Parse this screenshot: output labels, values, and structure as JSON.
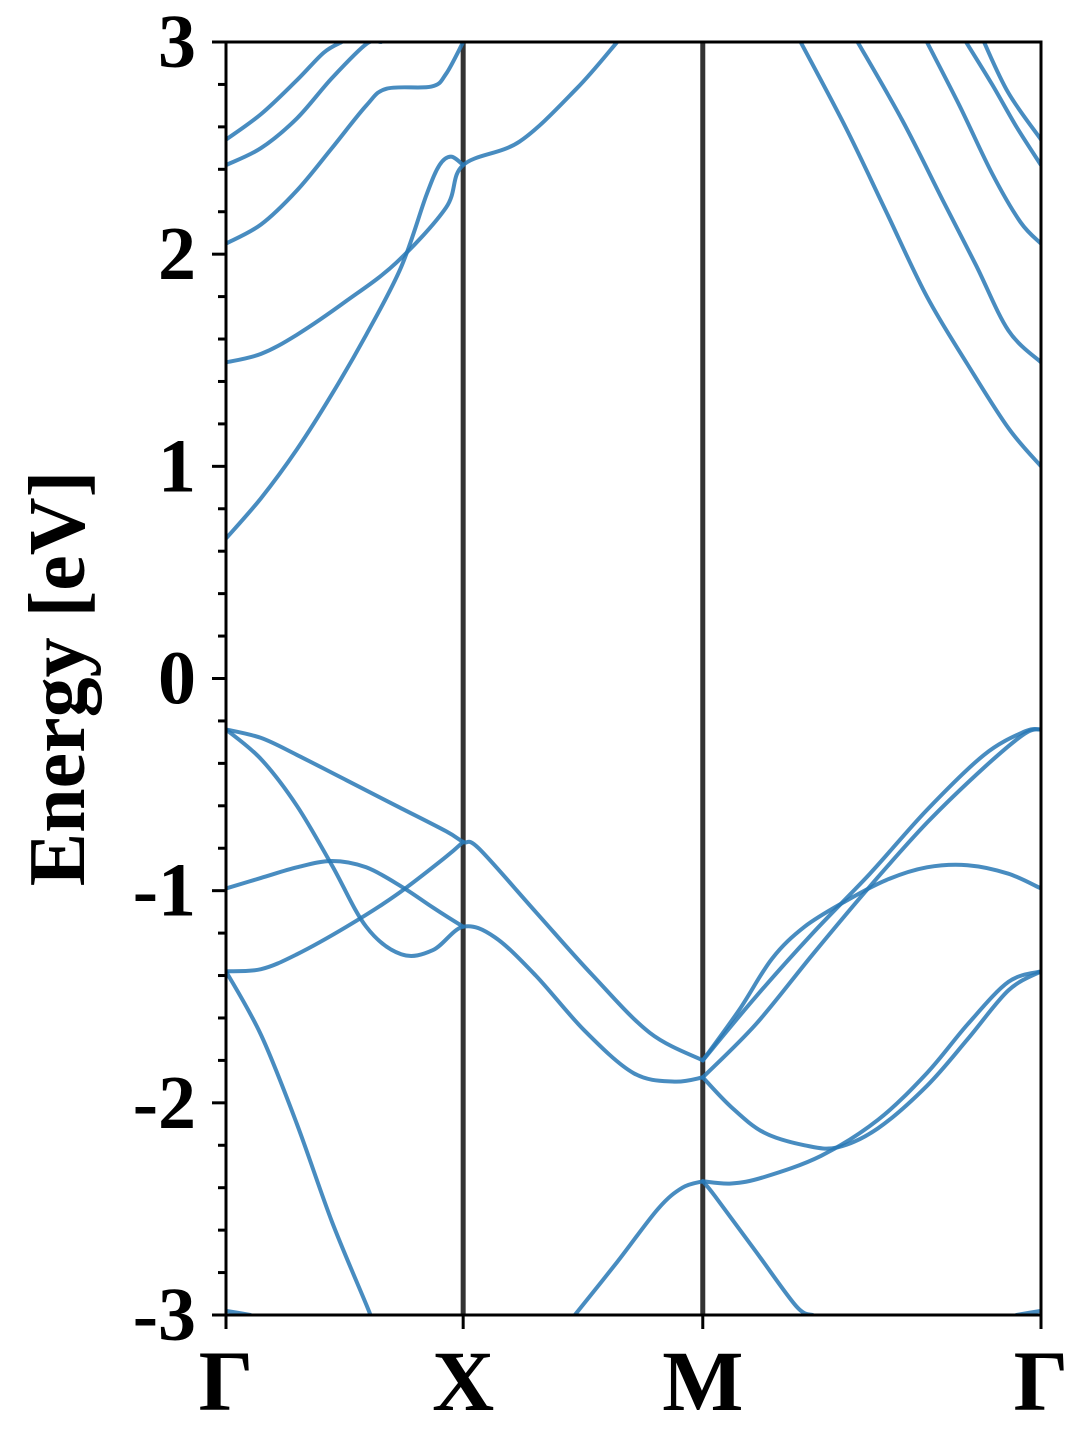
{
  "chart_data": {
    "type": "line",
    "title": "",
    "xlabel": "",
    "ylabel": "Energy [eV]",
    "ylim": [
      -3,
      3
    ],
    "xlim": [
      0,
      1
    ],
    "yticks": [
      -3,
      -2,
      -1,
      0,
      1,
      2,
      3
    ],
    "ytick_labels": [
      "-3",
      "-2",
      "-1",
      "0",
      "1",
      "2",
      "3"
    ],
    "minor_yticks_step": 0.2,
    "kpoints": [
      {
        "label": "Γ",
        "x": 0.0
      },
      {
        "label": "X",
        "x": 0.291
      },
      {
        "label": "M",
        "x": 0.585
      },
      {
        "label": "Γ",
        "x": 1.0
      }
    ],
    "grid": false,
    "colors": {
      "bands": "#2878b5",
      "kpath_lines": "#333333",
      "axes": "#000000"
    },
    "series": [
      {
        "values": [
          [
            0.0,
            2.54
          ],
          [
            0.043,
            2.66
          ],
          [
            0.087,
            2.82
          ],
          [
            0.12,
            2.95
          ],
          [
            0.142,
            3.0
          ]
        ]
      },
      {
        "values": [
          [
            0.0,
            2.42
          ],
          [
            0.043,
            2.5
          ],
          [
            0.087,
            2.64
          ],
          [
            0.13,
            2.83
          ],
          [
            0.172,
            2.99
          ],
          [
            0.19,
            3.0
          ]
        ]
      },
      {
        "values": [
          [
            0.0,
            2.05
          ],
          [
            0.043,
            2.14
          ],
          [
            0.087,
            2.3
          ],
          [
            0.13,
            2.5
          ],
          [
            0.172,
            2.7
          ],
          [
            0.197,
            2.78
          ],
          [
            0.252,
            2.79
          ],
          [
            0.27,
            2.85
          ],
          [
            0.291,
            3.0
          ]
        ]
      },
      {
        "values": [
          [
            0.0,
            1.49
          ],
          [
            0.043,
            1.53
          ],
          [
            0.087,
            1.62
          ],
          [
            0.148,
            1.78
          ],
          [
            0.209,
            1.96
          ],
          [
            0.27,
            2.22
          ],
          [
            0.291,
            2.42
          ],
          [
            0.36,
            2.53
          ],
          [
            0.43,
            2.78
          ],
          [
            0.48,
            3.0
          ]
        ]
      },
      {
        "values": [
          [
            0.0,
            0.66
          ],
          [
            0.043,
            0.85
          ],
          [
            0.087,
            1.08
          ],
          [
            0.13,
            1.34
          ],
          [
            0.172,
            1.62
          ],
          [
            0.215,
            1.94
          ],
          [
            0.246,
            2.28
          ],
          [
            0.262,
            2.42
          ],
          [
            0.276,
            2.46
          ],
          [
            0.291,
            2.42
          ]
        ]
      },
      {
        "values": [
          [
            0.705,
            3.0
          ],
          [
            0.76,
            2.6
          ],
          [
            0.81,
            2.2
          ],
          [
            0.86,
            1.8
          ],
          [
            0.91,
            1.48
          ],
          [
            0.96,
            1.18
          ],
          [
            1.0,
            1.0
          ]
        ]
      },
      {
        "values": [
          [
            0.775,
            3.0
          ],
          [
            0.83,
            2.63
          ],
          [
            0.88,
            2.25
          ],
          [
            0.92,
            1.95
          ],
          [
            0.96,
            1.64
          ],
          [
            1.0,
            1.49
          ]
        ]
      },
      {
        "values": [
          [
            0.86,
            3.0
          ],
          [
            0.9,
            2.7
          ],
          [
            0.94,
            2.38
          ],
          [
            0.975,
            2.15
          ],
          [
            1.0,
            2.05
          ]
        ]
      },
      {
        "values": [
          [
            0.908,
            3.0
          ],
          [
            0.94,
            2.8
          ],
          [
            0.97,
            2.6
          ],
          [
            1.0,
            2.42
          ]
        ]
      },
      {
        "values": [
          [
            0.93,
            3.0
          ],
          [
            0.96,
            2.76
          ],
          [
            1.0,
            2.54
          ]
        ]
      },
      {
        "values": [
          [
            0.0,
            -0.24
          ],
          [
            0.043,
            -0.28
          ],
          [
            0.087,
            -0.36
          ],
          [
            0.148,
            -0.48
          ],
          [
            0.209,
            -0.6
          ],
          [
            0.27,
            -0.72
          ],
          [
            0.291,
            -0.77
          ],
          [
            0.31,
            -0.8
          ],
          [
            0.38,
            -1.1
          ],
          [
            0.45,
            -1.4
          ],
          [
            0.52,
            -1.67
          ],
          [
            0.585,
            -1.8
          ]
        ]
      },
      {
        "values": [
          [
            0.0,
            -0.24
          ],
          [
            0.043,
            -0.38
          ],
          [
            0.087,
            -0.6
          ],
          [
            0.13,
            -0.88
          ],
          [
            0.172,
            -1.17
          ],
          [
            0.215,
            -1.3
          ],
          [
            0.254,
            -1.28
          ],
          [
            0.291,
            -1.17
          ],
          [
            0.33,
            -1.22
          ],
          [
            0.38,
            -1.4
          ],
          [
            0.44,
            -1.66
          ],
          [
            0.5,
            -1.86
          ],
          [
            0.55,
            -1.9
          ],
          [
            0.585,
            -1.88
          ]
        ]
      },
      {
        "values": [
          [
            0.0,
            -0.99
          ],
          [
            0.043,
            -0.94
          ],
          [
            0.087,
            -0.89
          ],
          [
            0.13,
            -0.86
          ],
          [
            0.172,
            -0.89
          ],
          [
            0.215,
            -0.98
          ],
          [
            0.254,
            -1.08
          ],
          [
            0.291,
            -1.17
          ]
        ]
      },
      {
        "values": [
          [
            0.0,
            -1.38
          ],
          [
            0.043,
            -1.37
          ],
          [
            0.087,
            -1.3
          ],
          [
            0.148,
            -1.17
          ],
          [
            0.209,
            -1.02
          ],
          [
            0.27,
            -0.84
          ],
          [
            0.291,
            -0.77
          ]
        ]
      },
      {
        "values": [
          [
            0.0,
            -1.38
          ],
          [
            0.043,
            -1.68
          ],
          [
            0.087,
            -2.1
          ],
          [
            0.13,
            -2.56
          ],
          [
            0.172,
            -2.95
          ],
          [
            0.177,
            -3.0
          ]
        ]
      },
      {
        "values": [
          [
            0.428,
            -3.0
          ],
          [
            0.48,
            -2.75
          ],
          [
            0.53,
            -2.5
          ],
          [
            0.56,
            -2.4
          ],
          [
            0.585,
            -2.37
          ]
        ]
      },
      {
        "values": [
          [
            0.585,
            -2.37
          ],
          [
            0.62,
            -2.38
          ],
          [
            0.66,
            -2.35
          ],
          [
            0.73,
            -2.25
          ],
          [
            0.8,
            -2.08
          ],
          [
            0.86,
            -1.86
          ],
          [
            0.91,
            -1.63
          ],
          [
            0.96,
            -1.43
          ],
          [
            1.0,
            -1.38
          ]
        ]
      },
      {
        "values": [
          [
            0.585,
            -1.88
          ],
          [
            0.62,
            -2.02
          ],
          [
            0.66,
            -2.14
          ],
          [
            0.71,
            -2.2
          ],
          [
            0.75,
            -2.21
          ],
          [
            0.8,
            -2.12
          ],
          [
            0.86,
            -1.92
          ],
          [
            0.91,
            -1.7
          ],
          [
            0.96,
            -1.47
          ],
          [
            1.0,
            -1.38
          ]
        ]
      },
      {
        "values": [
          [
            0.585,
            -2.37
          ],
          [
            0.6,
            -2.44
          ],
          [
            0.65,
            -2.7
          ],
          [
            0.7,
            -2.96
          ],
          [
            0.72,
            -3.0
          ]
        ]
      },
      {
        "values": [
          [
            0.585,
            -1.8
          ],
          [
            0.63,
            -1.56
          ],
          [
            0.67,
            -1.32
          ],
          [
            0.71,
            -1.17
          ],
          [
            0.76,
            -1.05
          ],
          [
            0.81,
            -0.95
          ],
          [
            0.86,
            -0.89
          ],
          [
            0.91,
            -0.88
          ],
          [
            0.96,
            -0.92
          ],
          [
            1.0,
            -0.99
          ]
        ]
      },
      {
        "values": [
          [
            0.585,
            -1.8
          ],
          [
            0.65,
            -1.5
          ],
          [
            0.72,
            -1.2
          ],
          [
            0.79,
            -0.92
          ],
          [
            0.86,
            -0.62
          ],
          [
            0.93,
            -0.36
          ],
          [
            0.98,
            -0.25
          ],
          [
            1.0,
            -0.24
          ]
        ]
      },
      {
        "values": [
          [
            0.585,
            -1.88
          ],
          [
            0.65,
            -1.63
          ],
          [
            0.72,
            -1.3
          ],
          [
            0.79,
            -0.98
          ],
          [
            0.86,
            -0.68
          ],
          [
            0.93,
            -0.42
          ],
          [
            0.98,
            -0.26
          ],
          [
            1.0,
            -0.24
          ]
        ]
      },
      {
        "values": [
          [
            0.0,
            -2.98
          ],
          [
            0.03,
            -3.0
          ]
        ]
      },
      {
        "values": [
          [
            0.97,
            -3.0
          ],
          [
            1.0,
            -2.98
          ]
        ]
      }
    ]
  }
}
